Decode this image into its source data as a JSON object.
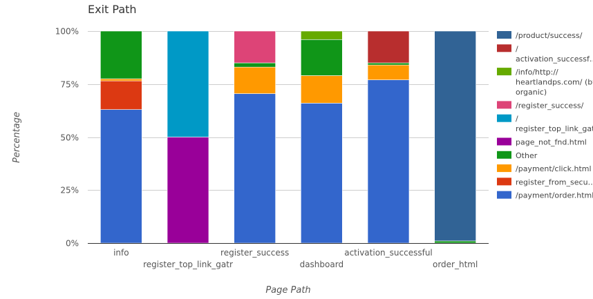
{
  "chart_data": {
    "type": "bar",
    "stacked": true,
    "normalized": true,
    "title": "Exit Path",
    "xlabel": "Page Path",
    "ylabel": "Percentage",
    "ylim": [
      0,
      100
    ],
    "yticks": [
      "0%",
      "25%",
      "50%",
      "75%",
      "100%"
    ],
    "categories": [
      "info",
      "register_top_link_gatr",
      "register_success",
      "dashboard",
      "activation_successful",
      "order_html"
    ],
    "series": [
      {
        "name": "/payment/order.html",
        "color": "#3366cc",
        "values": [
          63,
          0,
          70.5,
          66,
          77,
          0
        ]
      },
      {
        "name": "register_from_secu…",
        "color": "#dc3912",
        "values": [
          13.5,
          0,
          0,
          0,
          0,
          0
        ]
      },
      {
        "name": "/payment/click.html",
        "color": "#ff9900",
        "values": [
          1,
          0,
          12.5,
          13,
          7,
          0
        ]
      },
      {
        "name": "Other",
        "color": "#109618",
        "values": [
          22.5,
          0,
          2,
          17,
          1,
          1
        ]
      },
      {
        "name": "page_not_fnd.html",
        "color": "#990099",
        "values": [
          0,
          50,
          0,
          0,
          0,
          0
        ]
      },
      {
        "name": "/\nregister_top_link_gatr",
        "color": "#0099c6",
        "values": [
          0,
          50,
          0,
          0,
          0,
          0
        ]
      },
      {
        "name": "/register_success/",
        "color": "#dd4477",
        "values": [
          0,
          0,
          15,
          0,
          0,
          0
        ]
      },
      {
        "name": "/info/http://\nheartlandps.com/ (by\norganic)",
        "color": "#66aa00",
        "values": [
          0,
          0,
          0,
          4,
          0,
          0
        ]
      },
      {
        "name": "/\nactivation_successf…",
        "color": "#b82e2e",
        "values": [
          0,
          0,
          0,
          0,
          15,
          0
        ]
      },
      {
        "name": "/product/success/",
        "color": "#316395",
        "values": [
          0,
          0,
          0,
          0,
          0,
          99
        ]
      }
    ],
    "legend_position": "right",
    "grid": true
  }
}
